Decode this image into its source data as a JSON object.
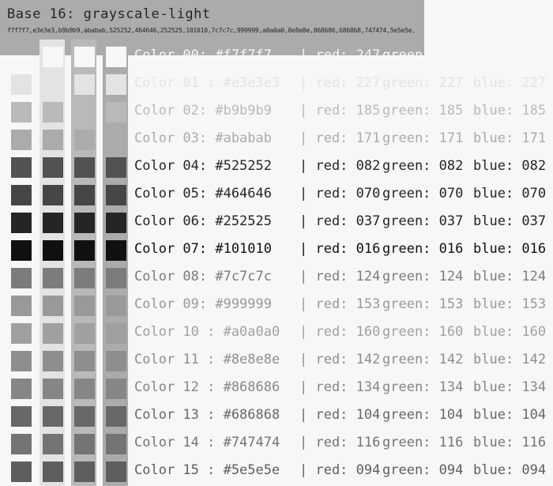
{
  "title": "Base 16: grayscale-light",
  "hex_list": "f7f7f7,e3e3e3,b9b9b9,ababab,525252,464646,252525,101010,7c7c7c,999999,a0a0a0,8e8e8e,868686,686868,747474,5e5e5e,",
  "rows": [
    {
      "name": "Color 00: #f7f7f7",
      "red": "| red: 247",
      "green": "green: 247",
      "blue": "blue: 247",
      "color": "#f7f7f7",
      "text_color": "#f7f7f7"
    },
    {
      "name": "Color 01 : #e3e3e3",
      "red": "| red: 227",
      "green": "green: 227",
      "blue": "blue: 227",
      "color": "#e3e3e3",
      "text_color": "#e3e3e3"
    },
    {
      "name": "Color 02: #b9b9b9",
      "red": "| red: 185",
      "green": "green: 185",
      "blue": "blue: 185",
      "color": "#b9b9b9",
      "text_color": "#b9b9b9"
    },
    {
      "name": "Color 03: #ababab",
      "red": "| red: 171",
      "green": "green: 171",
      "blue": "blue: 171",
      "color": "#ababab",
      "text_color": "#ababab"
    },
    {
      "name": "Color 04: #525252",
      "red": "| red: 082",
      "green": "green: 082",
      "blue": "blue: 082",
      "color": "#525252",
      "text_color": "#252525"
    },
    {
      "name": "Color 05: #464646",
      "red": "| red: 070",
      "green": "green: 070",
      "blue": "blue: 070",
      "color": "#464646",
      "text_color": "#252525"
    },
    {
      "name": "Color 06: #252525",
      "red": "| red: 037",
      "green": "green: 037",
      "blue": "blue: 037",
      "color": "#252525",
      "text_color": "#252525"
    },
    {
      "name": "Color 07: #101010",
      "red": "| red: 016",
      "green": "green: 016",
      "blue": "blue: 016",
      "color": "#101010",
      "text_color": "#101010"
    },
    {
      "name": "Color 08: #7c7c7c",
      "red": "| red: 124",
      "green": "green: 124",
      "blue": "blue: 124",
      "color": "#7c7c7c",
      "text_color": "#7c7c7c"
    },
    {
      "name": "Color 09: #999999",
      "red": "| red: 153",
      "green": "green: 153",
      "blue": "blue: 153",
      "color": "#999999",
      "text_color": "#999999"
    },
    {
      "name": "Color 10 : #a0a0a0",
      "red": "| red: 160",
      "green": "green: 160",
      "blue": "blue: 160",
      "color": "#a0a0a0",
      "text_color": "#a0a0a0"
    },
    {
      "name": "Color 11  : #8e8e8e",
      "red": "| red: 142",
      "green": "green: 142",
      "blue": "blue: 142",
      "color": "#8e8e8e",
      "text_color": "#8e8e8e"
    },
    {
      "name": "Color 12 : #868686",
      "red": "| red: 134",
      "green": "green: 134",
      "blue": "blue: 134",
      "color": "#868686",
      "text_color": "#868686"
    },
    {
      "name": "Color 13 : #686868",
      "red": "| red: 104",
      "green": "green: 104",
      "blue": "blue: 104",
      "color": "#686868",
      "text_color": "#686868"
    },
    {
      "name": "Color 14 : #747474",
      "red": "| red: 116",
      "green": "green: 116",
      "blue": "blue: 116",
      "color": "#747474",
      "text_color": "#747474"
    },
    {
      "name": "Color 15 : #5e5e5e",
      "red": "| red: 094",
      "green": "green: 094",
      "blue": "blue: 094",
      "color": "#5e5e5e",
      "text_color": "#5e5e5e"
    }
  ]
}
